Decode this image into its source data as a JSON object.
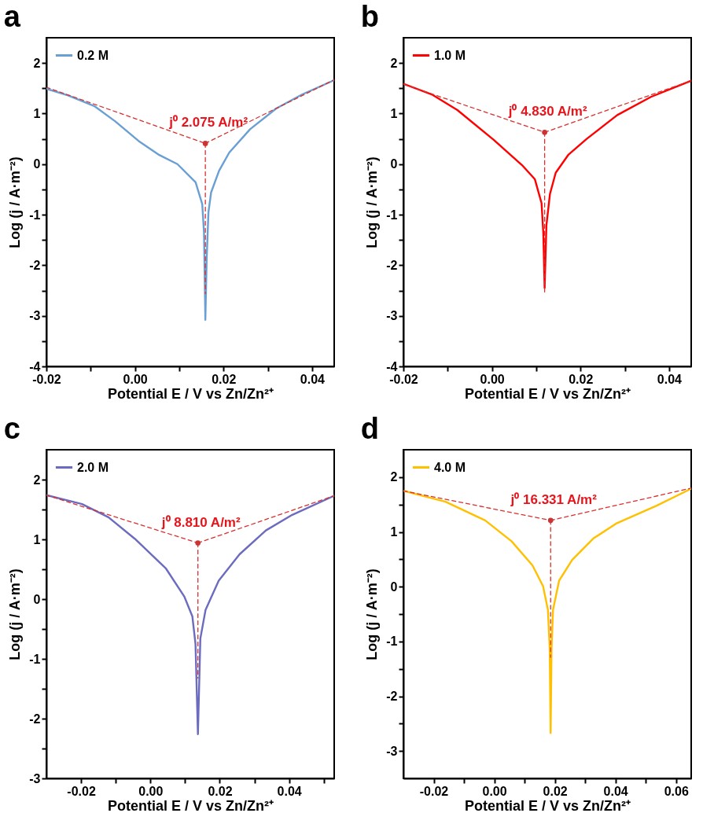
{
  "chart_data": [
    {
      "type": "line",
      "title": "a",
      "xlabel": "Potential E / V vs Zn/Zn²⁺",
      "ylabel": "Log (j / A·m⁻²)",
      "xlim": [
        -0.02,
        0.045
      ],
      "ylim": [
        -4,
        2.5
      ],
      "xticks": [
        {
          "value": -0.02,
          "label": "-0.02"
        },
        {
          "value": -0.01,
          "label": null
        },
        {
          "value": 0,
          "label": "0.00"
        },
        {
          "value": 0.01,
          "label": null
        },
        {
          "value": 0.02,
          "label": "0.02"
        },
        {
          "value": 0.03,
          "label": null
        },
        {
          "value": 0.04,
          "label": "0.04"
        }
      ],
      "yticks": [
        -4,
        {
          "value": -3.5,
          "label": null
        },
        -3,
        {
          "value": -2.5,
          "label": null
        },
        -2,
        {
          "value": -1.5,
          "label": null
        },
        -1,
        {
          "value": -0.5,
          "label": null
        },
        0,
        {
          "value": 0.5,
          "label": null
        },
        1,
        {
          "value": 1.5,
          "label": null
        },
        2
      ],
      "legend": "top left",
      "annotations": [
        {
          "text": "j⁰ 2.075 A/m²",
          "x": 0.0159,
          "y": 0.41
        }
      ],
      "series": [
        {
          "name": "0.2 M",
          "color": "#6a9fd4",
          "x": [
            -0.02,
            -0.0151,
            -0.0092,
            -0.0045,
            0.0008,
            0.0055,
            0.0096,
            0.0137,
            0.0152,
            0.0156,
            0.0159,
            0.0162,
            0.0166,
            0.0172,
            0.019,
            0.0213,
            0.026,
            0.0319,
            0.0378,
            0.045
          ],
          "values": [
            1.49,
            1.36,
            1.15,
            0.85,
            0.46,
            0.18,
            0.0,
            -0.36,
            -0.79,
            -1.36,
            -3.08,
            -1.87,
            -0.95,
            -0.56,
            -0.13,
            0.23,
            0.69,
            1.1,
            1.38,
            1.66
          ]
        },
        {
          "type": "line",
          "color": "#d93030",
          "line_style": "dashed",
          "x": [
            -0.02,
            0.0159
          ],
          "values": [
            1.52,
            0.41
          ]
        },
        {
          "type": "line",
          "color": "#d93030",
          "line_style": "dashed",
          "x": [
            0.0159,
            0.045
          ],
          "values": [
            0.41,
            1.67
          ]
        },
        {
          "type": "line",
          "color": "#d93030",
          "line_style": "dashed",
          "x": [
            0.0159,
            0.0159
          ],
          "values": [
            0.41,
            -2.56
          ]
        },
        {
          "type": "scatter",
          "color": "#cc3333",
          "marker": "circle",
          "x": [
            0.0159
          ],
          "values": [
            0.41
          ]
        }
      ]
    },
    {
      "type": "line",
      "title": "b",
      "xlabel": "Potential E / V vs Zn/Zn²⁺",
      "ylabel": "Log (j / A·m⁻²)",
      "xlim": [
        -0.02,
        0.045
      ],
      "ylim": [
        -4,
        2.5
      ],
      "xticks": [
        {
          "value": -0.02,
          "label": "-0.02"
        },
        {
          "value": -0.01,
          "label": null
        },
        {
          "value": 0,
          "label": "0.00"
        },
        {
          "value": 0.01,
          "label": null
        },
        {
          "value": 0.02,
          "label": "0.02"
        },
        {
          "value": 0.03,
          "label": null
        },
        {
          "value": 0.04,
          "label": "0.04"
        }
      ],
      "yticks": [
        -4,
        {
          "value": -3.5,
          "label": null
        },
        -3,
        {
          "value": -2.5,
          "label": null
        },
        -2,
        {
          "value": -1.5,
          "label": null
        },
        -1,
        {
          "value": -0.5,
          "label": null
        },
        0,
        {
          "value": 0.5,
          "label": null
        },
        1,
        {
          "value": 1.5,
          "label": null
        },
        2
      ],
      "legend": "top left",
      "annotations": [
        {
          "text": "j⁰ 4.830 A/m²",
          "x": 0.0119,
          "y": 0.63
        }
      ],
      "series": [
        {
          "name": "1.0 M",
          "color": "#ff0000",
          "x": [
            -0.02,
            -0.0136,
            -0.0078,
            0.0004,
            0.0068,
            0.0097,
            0.0112,
            0.0116,
            0.0119,
            0.0123,
            0.0131,
            0.0144,
            0.0173,
            0.0214,
            0.0283,
            0.0359,
            0.045
          ],
          "values": [
            1.59,
            1.38,
            1.07,
            0.48,
            -0.02,
            -0.3,
            -0.77,
            -1.36,
            -2.45,
            -1.21,
            -0.59,
            -0.17,
            0.19,
            0.5,
            0.97,
            1.33,
            1.65
          ]
        },
        {
          "type": "line",
          "color": "#d93030",
          "line_style": "dashed",
          "x": [
            -0.02,
            0.0119
          ],
          "values": [
            1.58,
            0.63
          ]
        },
        {
          "type": "line",
          "color": "#d93030",
          "line_style": "dashed",
          "x": [
            0.0119,
            0.045
          ],
          "values": [
            0.63,
            1.65
          ]
        },
        {
          "type": "line",
          "color": "#d93030",
          "line_style": "dashed",
          "x": [
            0.0119,
            0.0119
          ],
          "values": [
            0.63,
            -2.53
          ]
        },
        {
          "type": "scatter",
          "color": "#cc3333",
          "marker": "circle",
          "x": [
            0.0119
          ],
          "values": [
            0.63
          ]
        }
      ]
    },
    {
      "type": "line",
      "title": "c",
      "xlabel": "Potential E / V vs Zn/Zn²⁺",
      "ylabel": "Log (j / A·m⁻²)",
      "xlim": [
        -0.03,
        0.053
      ],
      "ylim": [
        -3,
        2.5
      ],
      "xticks": [
        {
          "value": -0.02,
          "label": "-0.02"
        },
        {
          "value": -0.01,
          "label": null
        },
        {
          "value": 0,
          "label": "0.00"
        },
        {
          "value": 0.01,
          "label": null
        },
        {
          "value": 0.02,
          "label": "0.02"
        },
        {
          "value": 0.03,
          "label": null
        },
        {
          "value": 0.04,
          "label": "0.04"
        },
        {
          "value": 0.05,
          "label": null
        }
      ],
      "yticks": [
        -3,
        {
          "value": -2.5,
          "label": null
        },
        -2,
        {
          "value": -1.5,
          "label": null
        },
        -1,
        {
          "value": -0.5,
          "label": null
        },
        0,
        {
          "value": 0.5,
          "label": null
        },
        1,
        {
          "value": 1.5,
          "label": null
        },
        2
      ],
      "legend": "top left",
      "annotations": [
        {
          "text": "j⁰ 8.810 A/m²",
          "x": 0.0137,
          "y": 0.94
        }
      ],
      "series": [
        {
          "name": "2.0 M",
          "color": "#6b6bbf",
          "x": [
            -0.03,
            -0.0197,
            -0.0121,
            -0.0045,
            0.0045,
            0.0098,
            0.0121,
            0.013,
            0.0137,
            0.0144,
            0.0159,
            0.0197,
            0.0257,
            0.0333,
            0.0409,
            0.053
          ],
          "values": [
            1.74,
            1.59,
            1.37,
            1.01,
            0.51,
            0.04,
            -0.29,
            -0.75,
            -2.26,
            -0.66,
            -0.18,
            0.31,
            0.75,
            1.15,
            1.41,
            1.73
          ]
        },
        {
          "type": "line",
          "color": "#d93030",
          "line_style": "dashed",
          "x": [
            -0.03,
            0.0137
          ],
          "values": [
            1.74,
            0.94
          ]
        },
        {
          "type": "line",
          "color": "#d93030",
          "line_style": "dashed",
          "x": [
            0.0137,
            0.053
          ],
          "values": [
            0.94,
            1.73
          ]
        },
        {
          "type": "line",
          "color": "#d93030",
          "line_style": "dashed",
          "x": [
            0.0137,
            0.0137
          ],
          "values": [
            0.94,
            -1.32
          ]
        },
        {
          "type": "scatter",
          "color": "#cc3333",
          "marker": "circle",
          "x": [
            0.0137
          ],
          "values": [
            0.94
          ]
        }
      ]
    },
    {
      "type": "line",
      "title": "d",
      "xlabel": "Potential E / V vs Zn/Zn²⁺",
      "ylabel": "Log (j / A·m⁻²)",
      "xlim": [
        -0.03,
        0.065
      ],
      "ylim": [
        -3.5,
        2.5
      ],
      "xticks": [
        {
          "value": -0.02,
          "label": "-0.02"
        },
        {
          "value": -0.01,
          "label": null
        },
        {
          "value": 0,
          "label": "0.00"
        },
        {
          "value": 0.01,
          "label": null
        },
        {
          "value": 0.02,
          "label": "0.02"
        },
        {
          "value": 0.03,
          "label": null
        },
        {
          "value": 0.04,
          "label": "0.04"
        },
        {
          "value": 0.05,
          "label": null
        },
        {
          "value": 0.06,
          "label": "0.06"
        }
      ],
      "yticks": [
        -3,
        {
          "value": -2.5,
          "label": null
        },
        -2,
        {
          "value": -1.5,
          "label": null
        },
        -1,
        {
          "value": -0.5,
          "label": null
        },
        0,
        {
          "value": 0.5,
          "label": null
        },
        1,
        {
          "value": 1.5,
          "label": null
        },
        2
      ],
      "legend": "top left",
      "annotations": [
        {
          "text": "j⁰ 16.331 A/m²",
          "x": 0.0186,
          "y": 1.21
        }
      ],
      "series": [
        {
          "name": "4.0 M",
          "color": "#ffc000",
          "x": [
            -0.03,
            -0.0161,
            -0.003,
            0.0057,
            0.0126,
            0.0161,
            0.0177,
            0.0183,
            0.0186,
            0.0189,
            0.0194,
            0.0214,
            0.0257,
            0.0327,
            0.0405,
            0.0536,
            0.065
          ],
          "values": [
            1.75,
            1.55,
            1.21,
            0.83,
            0.39,
            0.01,
            -0.42,
            -1.14,
            -2.67,
            -1.14,
            -0.42,
            0.11,
            0.49,
            0.88,
            1.16,
            1.48,
            1.79
          ]
        },
        {
          "type": "line",
          "color": "#d93030",
          "line_style": "dashed",
          "x": [
            -0.03,
            0.0186
          ],
          "values": [
            1.75,
            1.21
          ]
        },
        {
          "type": "line",
          "color": "#d93030",
          "line_style": "dashed",
          "x": [
            0.0186,
            0.065
          ],
          "values": [
            1.21,
            1.8
          ]
        },
        {
          "type": "line",
          "color": "#d93030",
          "line_style": "dashed",
          "x": [
            0.0186,
            0.0186
          ],
          "values": [
            1.21,
            -1.29
          ]
        },
        {
          "type": "scatter",
          "color": "#cc3333",
          "marker": "circle",
          "x": [
            0.0186
          ],
          "values": [
            1.21
          ]
        }
      ]
    }
  ]
}
